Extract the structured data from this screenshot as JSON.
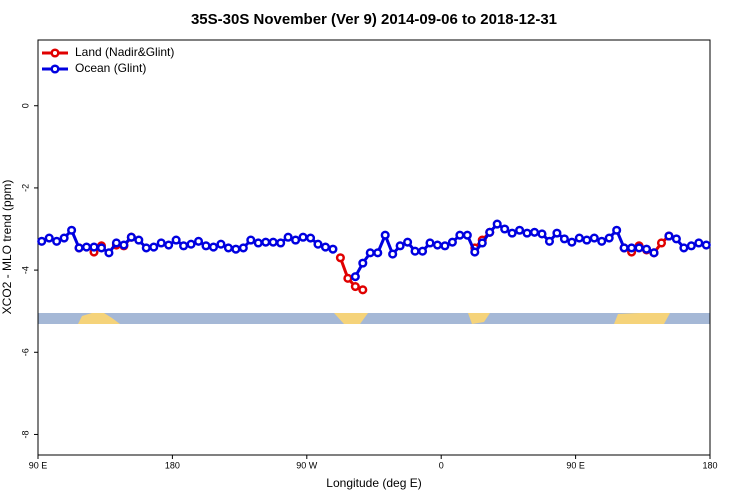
{
  "chart_data": {
    "type": "line",
    "title": "35S-30S November (Ver 9)   2014-09-06 to 2018-12-31",
    "xlabel": "Longitude (deg E)",
    "ylabel": "XCO2 - MLO trend (ppm)",
    "xlim": [
      90,
      540
    ],
    "ylim": [
      -8.5,
      1.6
    ],
    "xticks": [
      {
        "value": 90,
        "label": "90 E"
      },
      180,
      {
        "value": 270,
        "label": "90 W"
      },
      {
        "value": 360,
        "label": "0"
      },
      {
        "value": 450,
        "label": "90 E"
      },
      {
        "value": 540,
        "label": "180"
      }
    ],
    "yticks": [
      0,
      -2,
      -4,
      -6,
      -8
    ],
    "legend": "upper left",
    "x": [
      92.5,
      97.5,
      102.5,
      107.5,
      112.5,
      117.5,
      122.5,
      127.5,
      132.5,
      137.5,
      142.5,
      147.5,
      152.5,
      157.5,
      162.5,
      167.5,
      172.5,
      177.5,
      182.5,
      187.5,
      192.5,
      197.5,
      202.5,
      207.5,
      212.5,
      217.5,
      222.5,
      227.5,
      232.5,
      237.5,
      242.5,
      247.5,
      252.5,
      257.5,
      262.5,
      267.5,
      272.5,
      277.5,
      282.5,
      287.5,
      292.5,
      297.5,
      302.5,
      307.5,
      312.5,
      317.5,
      322.5,
      327.5,
      332.5,
      337.5,
      342.5,
      347.5,
      352.5,
      357.5,
      362.5,
      367.5,
      372.5,
      377.5,
      382.5,
      387.5,
      392.5,
      397.5,
      402.5,
      407.5,
      412.5,
      417.5,
      422.5,
      427.5,
      432.5,
      437.5,
      442.5,
      447.5,
      452.5,
      457.5,
      462.5,
      467.5,
      472.5,
      477.5,
      482.5,
      487.5,
      492.5,
      497.5,
      502.5,
      507.5,
      512.5,
      517.5,
      522.5,
      527.5,
      532.5,
      537.5
    ],
    "series": [
      {
        "name": "Land (Nadir&Glint)",
        "color": "#e00000",
        "values": [
          null,
          null,
          null,
          null,
          null,
          -3.46,
          null,
          -3.56,
          -3.41,
          null,
          -3.39,
          -3.41,
          -3.2,
          null,
          null,
          null,
          null,
          null,
          null,
          null,
          null,
          null,
          null,
          null,
          null,
          null,
          null,
          null,
          null,
          null,
          null,
          null,
          null,
          null,
          null,
          null,
          null,
          null,
          null,
          null,
          -3.7,
          -4.2,
          -4.4,
          -4.48,
          null,
          null,
          null,
          null,
          null,
          null,
          null,
          null,
          null,
          null,
          null,
          null,
          null,
          null,
          -3.46,
          -3.27,
          -3.08,
          null,
          null,
          null,
          null,
          null,
          null,
          null,
          null,
          null,
          null,
          null,
          null,
          null,
          null,
          null,
          null,
          null,
          -3.46,
          -3.56,
          -3.41,
          -3.51,
          -3.58,
          -3.34,
          -3.17,
          null,
          null,
          null,
          null,
          null
        ]
      },
      {
        "name": "Ocean (Glint)",
        "color": "#0000e0",
        "values": [
          -3.3,
          -3.22,
          -3.3,
          -3.22,
          -3.03,
          -3.46,
          -3.44,
          -3.44,
          -3.46,
          -3.58,
          -3.34,
          -3.39,
          -3.2,
          -3.27,
          -3.46,
          -3.44,
          -3.34,
          -3.39,
          -3.27,
          -3.41,
          -3.37,
          -3.3,
          -3.41,
          -3.44,
          -3.37,
          -3.46,
          -3.49,
          -3.46,
          -3.27,
          -3.34,
          -3.32,
          -3.32,
          -3.34,
          -3.2,
          -3.27,
          -3.2,
          -3.22,
          -3.37,
          -3.44,
          -3.49,
          null,
          null,
          -4.16,
          -3.83,
          -3.58,
          -3.58,
          -3.15,
          -3.61,
          -3.41,
          -3.32,
          -3.54,
          -3.54,
          -3.34,
          -3.39,
          -3.41,
          -3.32,
          -3.15,
          -3.15,
          -3.56,
          -3.34,
          -3.08,
          -2.88,
          -3.0,
          -3.1,
          -3.03,
          -3.1,
          -3.08,
          -3.12,
          -3.3,
          -3.1,
          -3.24,
          -3.32,
          -3.22,
          -3.27,
          -3.22,
          -3.3,
          -3.22,
          -3.03,
          -3.46,
          -3.46,
          -3.46,
          -3.49,
          -3.58,
          null,
          -3.17,
          -3.24,
          -3.46,
          -3.41,
          -3.34,
          -3.39
        ]
      }
    ]
  }
}
